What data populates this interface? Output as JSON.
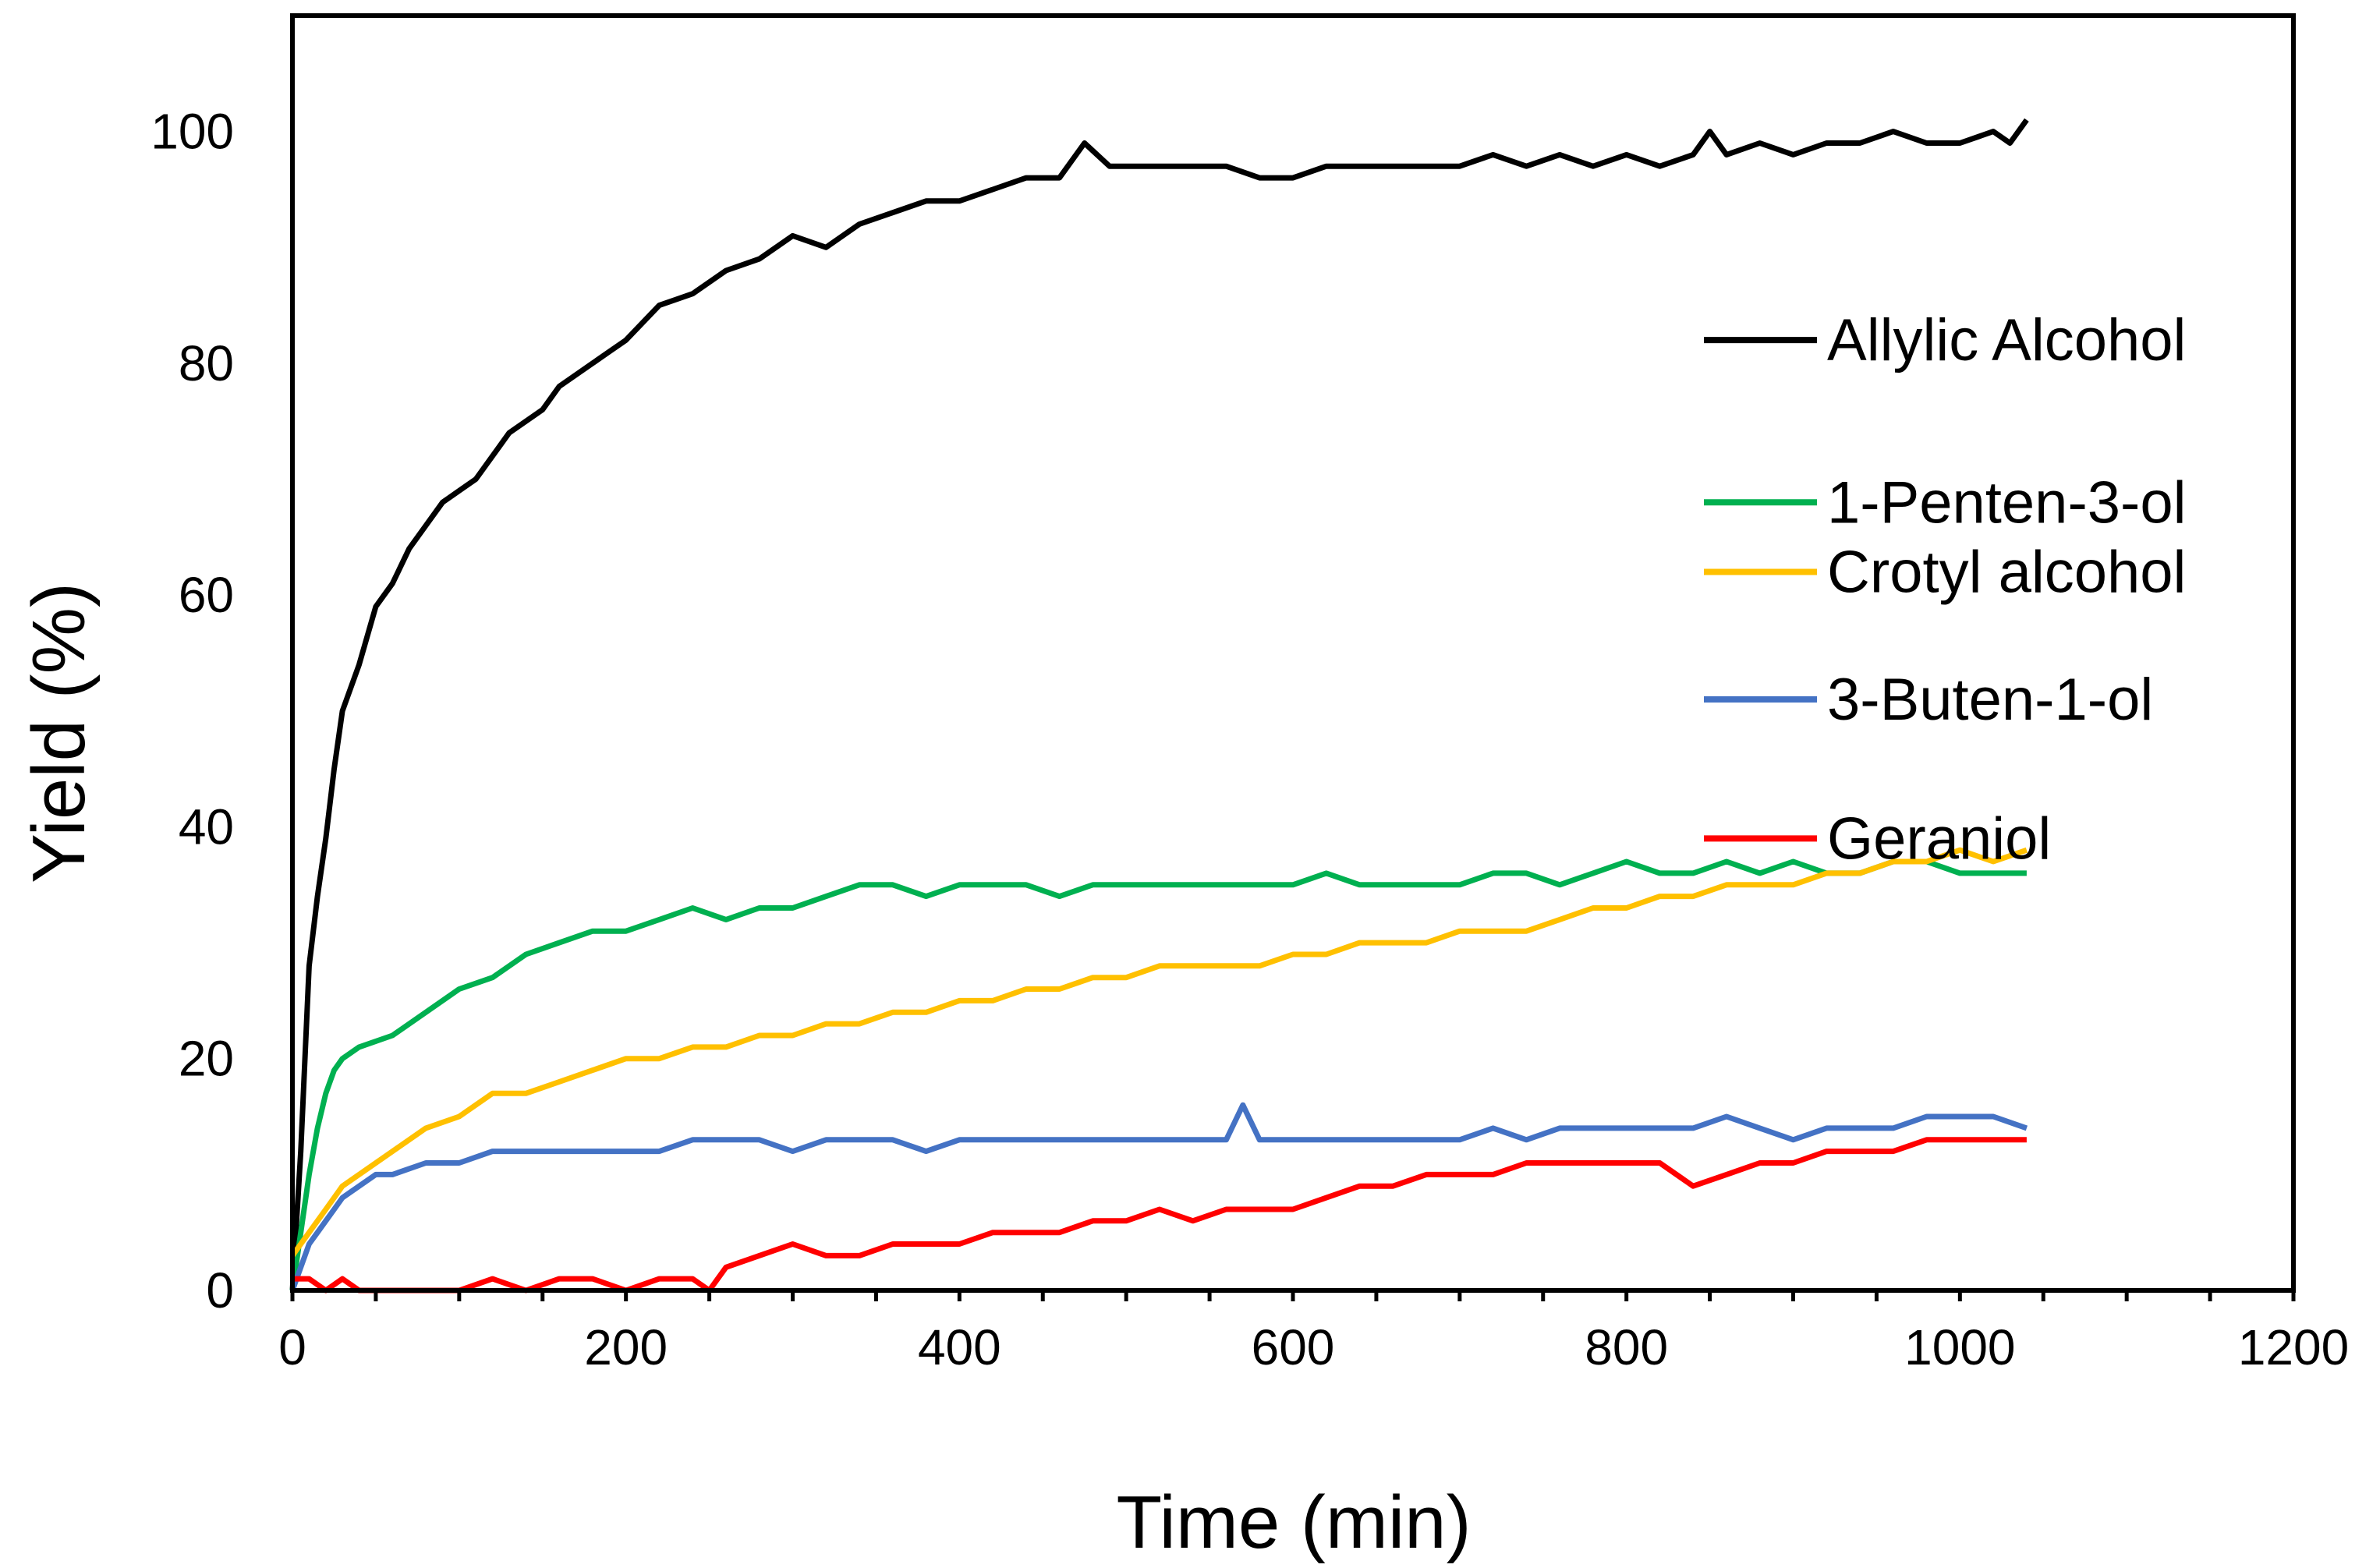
{
  "chart_data": {
    "type": "line",
    "title": "",
    "xlabel": "Time (min)",
    "ylabel": "Yield (%)",
    "xlim": [
      0,
      1200
    ],
    "ylim": [
      0,
      110
    ],
    "xticks": [
      0,
      200,
      400,
      600,
      800,
      1000,
      1200
    ],
    "yticks": [
      0,
      20,
      40,
      60,
      80,
      100
    ],
    "grid": false,
    "legend_position": "right",
    "series": [
      {
        "name": "Allylic Alcohol",
        "color": "#000000",
        "x": [
          0,
          5,
          10,
          15,
          20,
          25,
          30,
          40,
          50,
          60,
          70,
          80,
          90,
          100,
          110,
          120,
          130,
          140,
          150,
          160,
          170,
          180,
          190,
          200,
          220,
          240,
          260,
          280,
          300,
          320,
          340,
          360,
          380,
          400,
          420,
          440,
          460,
          475,
          490,
          500,
          520,
          540,
          560,
          580,
          600,
          620,
          640,
          660,
          680,
          700,
          720,
          740,
          760,
          780,
          800,
          820,
          840,
          850,
          860,
          880,
          900,
          920,
          940,
          960,
          980,
          1000,
          1020,
          1030,
          1040
        ],
        "y": [
          0,
          12,
          28,
          34,
          39,
          45,
          50,
          54,
          59,
          61,
          64,
          66,
          68,
          69,
          70,
          72,
          74,
          75,
          76,
          78,
          79,
          80,
          81,
          82,
          85,
          86,
          88,
          89,
          91,
          90,
          92,
          93,
          94,
          94,
          95,
          96,
          96,
          99,
          97,
          97,
          97,
          97,
          97,
          96,
          96,
          97,
          97,
          97,
          97,
          97,
          98,
          97,
          98,
          97,
          98,
          97,
          98,
          100,
          98,
          99,
          98,
          99,
          99,
          100,
          99,
          99,
          100,
          99,
          101
        ]
      },
      {
        "name": "1-Penten-3-ol",
        "color": "#00b050",
        "x": [
          0,
          5,
          10,
          15,
          20,
          25,
          30,
          40,
          60,
          80,
          100,
          120,
          140,
          160,
          180,
          200,
          220,
          240,
          260,
          280,
          300,
          320,
          340,
          360,
          380,
          400,
          420,
          440,
          460,
          480,
          500,
          520,
          540,
          560,
          580,
          600,
          620,
          640,
          660,
          680,
          700,
          720,
          740,
          760,
          780,
          800,
          820,
          840,
          860,
          880,
          900,
          920,
          940,
          960,
          980,
          1000,
          1020,
          1040
        ],
        "y": [
          0,
          5,
          10,
          14,
          17,
          19,
          20,
          21,
          22,
          24,
          26,
          27,
          29,
          30,
          31,
          31,
          32,
          33,
          32,
          33,
          33,
          34,
          35,
          35,
          34,
          35,
          35,
          35,
          34,
          35,
          35,
          35,
          35,
          35,
          35,
          35,
          36,
          35,
          35,
          35,
          35,
          36,
          36,
          35,
          36,
          37,
          36,
          36,
          37,
          36,
          37,
          36,
          36,
          37,
          37,
          36,
          36,
          36
        ]
      },
      {
        "name": "Crotyl alcohol",
        "color": "#ffc000",
        "x": [
          0,
          10,
          20,
          30,
          40,
          50,
          60,
          80,
          100,
          120,
          140,
          160,
          180,
          200,
          220,
          240,
          260,
          280,
          300,
          320,
          340,
          360,
          380,
          400,
          420,
          440,
          460,
          480,
          500,
          520,
          540,
          560,
          580,
          600,
          620,
          640,
          660,
          680,
          700,
          720,
          740,
          760,
          780,
          800,
          820,
          840,
          860,
          880,
          900,
          920,
          940,
          960,
          980,
          1000,
          1020,
          1040
        ],
        "y": [
          3,
          5,
          7,
          9,
          10,
          11,
          12,
          14,
          15,
          17,
          17,
          18,
          19,
          20,
          20,
          21,
          21,
          22,
          22,
          23,
          23,
          24,
          24,
          25,
          25,
          26,
          26,
          27,
          27,
          28,
          28,
          28,
          28,
          29,
          29,
          30,
          30,
          30,
          31,
          31,
          31,
          32,
          33,
          33,
          34,
          34,
          35,
          35,
          35,
          36,
          36,
          37,
          37,
          38,
          37,
          38
        ]
      },
      {
        "name": "3-Buten-1-ol",
        "color": "#4472c4",
        "x": [
          0,
          5,
          10,
          15,
          20,
          25,
          30,
          40,
          50,
          60,
          80,
          100,
          120,
          140,
          160,
          180,
          200,
          220,
          240,
          260,
          280,
          300,
          320,
          340,
          360,
          380,
          400,
          420,
          440,
          460,
          480,
          500,
          520,
          540,
          560,
          570,
          580,
          600,
          620,
          640,
          660,
          680,
          700,
          720,
          740,
          760,
          780,
          800,
          820,
          840,
          860,
          880,
          900,
          920,
          940,
          960,
          980,
          1000,
          1020,
          1040
        ],
        "y": [
          0,
          2,
          4,
          5,
          6,
          7,
          8,
          9,
          10,
          10,
          11,
          11,
          12,
          12,
          12,
          12,
          12,
          12,
          13,
          13,
          13,
          12,
          13,
          13,
          13,
          12,
          13,
          13,
          13,
          13,
          13,
          13,
          13,
          13,
          13,
          16,
          13,
          13,
          13,
          13,
          13,
          13,
          13,
          14,
          13,
          14,
          14,
          14,
          14,
          14,
          15,
          14,
          13,
          14,
          14,
          14,
          15,
          15,
          15,
          14
        ]
      },
      {
        "name": "Geraniol",
        "color": "#ff0000",
        "x": [
          0,
          10,
          20,
          30,
          40,
          60,
          80,
          100,
          120,
          140,
          160,
          180,
          200,
          220,
          240,
          250,
          260,
          280,
          300,
          320,
          340,
          360,
          380,
          400,
          420,
          440,
          460,
          480,
          500,
          520,
          540,
          560,
          580,
          600,
          620,
          640,
          660,
          680,
          700,
          720,
          740,
          760,
          780,
          800,
          820,
          840,
          860,
          880,
          900,
          920,
          940,
          960,
          980,
          1000,
          1020,
          1040
        ],
        "y": [
          1,
          1,
          0,
          1,
          0,
          0,
          0,
          0,
          1,
          0,
          1,
          1,
          0,
          1,
          1,
          0,
          2,
          3,
          4,
          3,
          3,
          4,
          4,
          4,
          5,
          5,
          5,
          6,
          6,
          7,
          6,
          7,
          7,
          7,
          8,
          9,
          9,
          10,
          10,
          10,
          11,
          11,
          11,
          11,
          11,
          9,
          10,
          11,
          11,
          12,
          12,
          12,
          13,
          13,
          13,
          13
        ]
      }
    ]
  }
}
